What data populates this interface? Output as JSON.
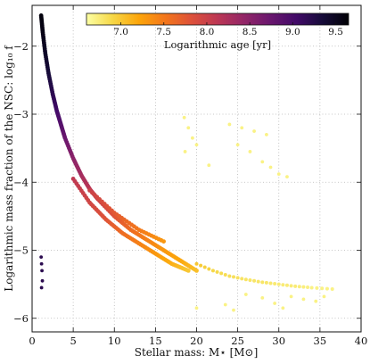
{
  "chart_data": {
    "type": "scatter",
    "xlabel": "Stellar mass: M⋆ [M⊙]",
    "ylabel": "Logarithmic mass fraction of the NSC: log₁₀ f",
    "xlim": [
      0,
      40
    ],
    "ylim": [
      -6.2,
      -1.4
    ],
    "x_ticks": [
      0,
      5,
      10,
      15,
      20,
      25,
      30,
      35,
      40
    ],
    "y_ticks": [
      -6,
      -5,
      -4,
      -3,
      -2
    ],
    "y_tick_labels": [
      "−6",
      "−5",
      "−4",
      "−3",
      "−2"
    ],
    "grid": true,
    "colormap": "inferno",
    "colorbar": {
      "label": "Logarithmic age [yr]",
      "range": [
        6.6,
        9.65
      ],
      "ticks": [
        7.0,
        7.5,
        8.0,
        8.5,
        9.0,
        9.5
      ],
      "tick_labels": [
        "7.0",
        "7.5",
        "8.0",
        "8.5",
        "9.0",
        "9.5"
      ],
      "placement": "top"
    },
    "series": [
      {
        "kind": "main-band",
        "points": [
          {
            "x": 1.1,
            "y": -1.55,
            "age": 9.6
          },
          {
            "x": 1.3,
            "y": -1.8,
            "age": 9.55
          },
          {
            "x": 1.6,
            "y": -2.1,
            "age": 9.45
          },
          {
            "x": 2.0,
            "y": -2.4,
            "age": 9.35
          },
          {
            "x": 2.5,
            "y": -2.7,
            "age": 9.2
          },
          {
            "x": 3.0,
            "y": -2.95,
            "age": 9.05
          },
          {
            "x": 3.5,
            "y": -3.15,
            "age": 8.9
          },
          {
            "x": 4.0,
            "y": -3.35,
            "age": 8.75
          },
          {
            "x": 5.0,
            "y": -3.65,
            "age": 8.5
          },
          {
            "x": 6.0,
            "y": -3.9,
            "age": 8.3
          },
          {
            "x": 7.0,
            "y": -4.1,
            "age": 8.15
          },
          {
            "x": 8.0,
            "y": -4.25,
            "age": 8.0
          },
          {
            "x": 10.0,
            "y": -4.5,
            "age": 7.8
          },
          {
            "x": 12.0,
            "y": -4.7,
            "age": 7.6
          },
          {
            "x": 14.0,
            "y": -4.85,
            "age": 7.45
          },
          {
            "x": 16.0,
            "y": -5.0,
            "age": 7.3
          },
          {
            "x": 18.0,
            "y": -5.15,
            "age": 7.2
          },
          {
            "x": 20.0,
            "y": -5.3,
            "age": 7.05
          }
        ]
      },
      {
        "kind": "lower-branch",
        "points": [
          {
            "x": 5.0,
            "y": -3.95,
            "age": 8.1
          },
          {
            "x": 7.0,
            "y": -4.3,
            "age": 7.95
          },
          {
            "x": 9.0,
            "y": -4.55,
            "age": 7.8
          },
          {
            "x": 11.0,
            "y": -4.75,
            "age": 7.6
          },
          {
            "x": 13.0,
            "y": -4.9,
            "age": 7.45
          },
          {
            "x": 15.0,
            "y": -5.05,
            "age": 7.3
          },
          {
            "x": 17.0,
            "y": -5.2,
            "age": 7.15
          },
          {
            "x": 19.0,
            "y": -5.3,
            "age": 7.0
          }
        ]
      },
      {
        "kind": "upper-strand",
        "points": [
          {
            "x": 7.0,
            "y": -4.12,
            "age": 8.0
          },
          {
            "x": 10.0,
            "y": -4.45,
            "age": 7.75
          },
          {
            "x": 13.0,
            "y": -4.7,
            "age": 7.5
          },
          {
            "x": 16.0,
            "y": -4.87,
            "age": 7.3
          }
        ]
      },
      {
        "kind": "tail",
        "points": [
          {
            "x": 20.0,
            "y": -5.2,
            "age": 7.0
          },
          {
            "x": 22.0,
            "y": -5.3,
            "age": 6.9
          },
          {
            "x": 24.0,
            "y": -5.38,
            "age": 6.85
          },
          {
            "x": 26.0,
            "y": -5.43,
            "age": 6.8
          },
          {
            "x": 28.0,
            "y": -5.47,
            "age": 6.8
          },
          {
            "x": 30.0,
            "y": -5.5,
            "age": 6.75
          },
          {
            "x": 32.0,
            "y": -5.53,
            "age": 6.75
          },
          {
            "x": 34.0,
            "y": -5.55,
            "age": 6.7
          },
          {
            "x": 36.5,
            "y": -5.57,
            "age": 6.7
          }
        ]
      },
      {
        "kind": "upper-right-cluster",
        "points": [
          {
            "x": 18.5,
            "y": -3.05,
            "age": 6.7
          },
          {
            "x": 19.0,
            "y": -3.2,
            "age": 6.7
          },
          {
            "x": 19.5,
            "y": -3.35,
            "age": 6.7
          },
          {
            "x": 20.0,
            "y": -3.45,
            "age": 6.7
          },
          {
            "x": 18.6,
            "y": -3.55,
            "age": 6.7
          },
          {
            "x": 21.5,
            "y": -3.75,
            "age": 6.7
          },
          {
            "x": 24.0,
            "y": -3.15,
            "age": 6.7
          },
          {
            "x": 25.5,
            "y": -3.2,
            "age": 6.7
          },
          {
            "x": 27.0,
            "y": -3.25,
            "age": 6.7
          },
          {
            "x": 28.5,
            "y": -3.3,
            "age": 6.7
          },
          {
            "x": 25.0,
            "y": -3.45,
            "age": 6.7
          },
          {
            "x": 26.5,
            "y": -3.55,
            "age": 6.7
          },
          {
            "x": 28.0,
            "y": -3.7,
            "age": 6.7
          },
          {
            "x": 29.0,
            "y": -3.78,
            "age": 6.7
          },
          {
            "x": 30.0,
            "y": -3.88,
            "age": 6.7
          },
          {
            "x": 31.0,
            "y": -3.92,
            "age": 6.7
          }
        ]
      },
      {
        "kind": "lower-right-cluster",
        "points": [
          {
            "x": 20.0,
            "y": -5.85,
            "age": 6.7
          },
          {
            "x": 23.5,
            "y": -5.8,
            "age": 6.7
          },
          {
            "x": 24.5,
            "y": -5.88,
            "age": 6.7
          },
          {
            "x": 26.0,
            "y": -5.65,
            "age": 6.7
          },
          {
            "x": 28.0,
            "y": -5.7,
            "age": 6.7
          },
          {
            "x": 29.5,
            "y": -5.78,
            "age": 6.7
          },
          {
            "x": 30.5,
            "y": -5.85,
            "age": 6.7
          },
          {
            "x": 31.5,
            "y": -5.68,
            "age": 6.7
          },
          {
            "x": 33.0,
            "y": -5.72,
            "age": 6.7
          },
          {
            "x": 34.5,
            "y": -5.75,
            "age": 6.7
          },
          {
            "x": 35.5,
            "y": -5.68,
            "age": 6.7
          }
        ]
      },
      {
        "kind": "low-mass-old-group",
        "points": [
          {
            "x": 1.1,
            "y": -5.1,
            "age": 9.2
          },
          {
            "x": 1.15,
            "y": -5.2,
            "age": 9.2
          },
          {
            "x": 1.2,
            "y": -5.3,
            "age": 9.2
          },
          {
            "x": 1.25,
            "y": -5.45,
            "age": 9.2
          },
          {
            "x": 1.15,
            "y": -5.55,
            "age": 9.2
          }
        ]
      }
    ]
  }
}
